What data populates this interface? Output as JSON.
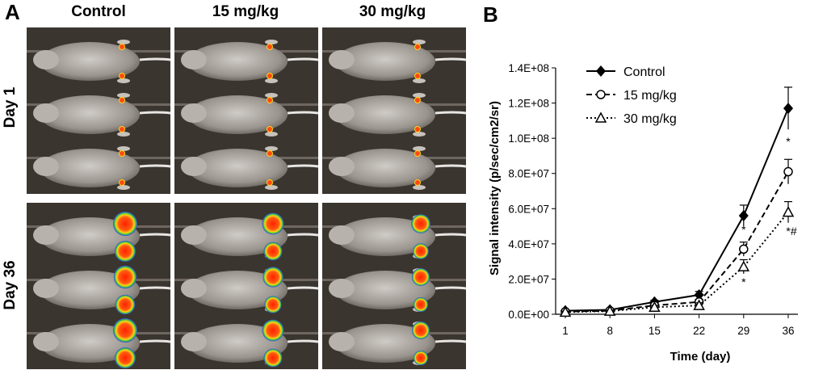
{
  "panels": {
    "a": "A",
    "b": "B"
  },
  "panel_a": {
    "columns": [
      "Control",
      "15 mg/kg",
      "30 mg/kg"
    ],
    "rows": [
      "Day 1",
      "Day 36"
    ]
  },
  "chart_data": {
    "type": "line",
    "title": "",
    "xlabel": "Time (day)",
    "ylabel": "Signal intensity (p/sec/cm2/sr)",
    "categories": [
      "1",
      "8",
      "15",
      "22",
      "29",
      "36"
    ],
    "ylim": [
      0,
      140000000
    ],
    "yticks": [
      0,
      20000000,
      40000000,
      60000000,
      80000000,
      100000000,
      120000000,
      140000000
    ],
    "ytick_labels": [
      "0.0E+00",
      "2.0E+07",
      "4.0E+07",
      "6.0E+07",
      "8.0E+07",
      "1.0E+08",
      "1.2E+08",
      "1.4E+08"
    ],
    "legend_position": "top-left",
    "series": [
      {
        "name": "Control",
        "marker": "diamond",
        "line": "solid",
        "values": [
          2000000,
          2500000,
          7000000,
          11000000,
          56000000,
          117000000
        ],
        "errors": [
          500000,
          500000,
          1000000,
          2000000,
          6000000,
          12000000
        ]
      },
      {
        "name": "15 mg/kg",
        "marker": "circle",
        "line": "dashed",
        "values": [
          1500000,
          2000000,
          5000000,
          7000000,
          37000000,
          81000000
        ],
        "errors": [
          500000,
          500000,
          1000000,
          1500000,
          4000000,
          7000000
        ]
      },
      {
        "name": "30 mg/kg",
        "marker": "triangle",
        "line": "dotted",
        "values": [
          1200000,
          1800000,
          4000000,
          5000000,
          27000000,
          58000000
        ],
        "errors": [
          500000,
          500000,
          1000000,
          1500000,
          4000000,
          6000000
        ]
      }
    ],
    "annotations": [
      {
        "text": "*",
        "x": "29",
        "y": 46000000
      },
      {
        "text": "*",
        "x": "29",
        "y": 16000000
      },
      {
        "text": "*",
        "x": "36",
        "y": 96000000
      },
      {
        "text": "*#",
        "x": "36",
        "y": 45000000
      }
    ]
  }
}
